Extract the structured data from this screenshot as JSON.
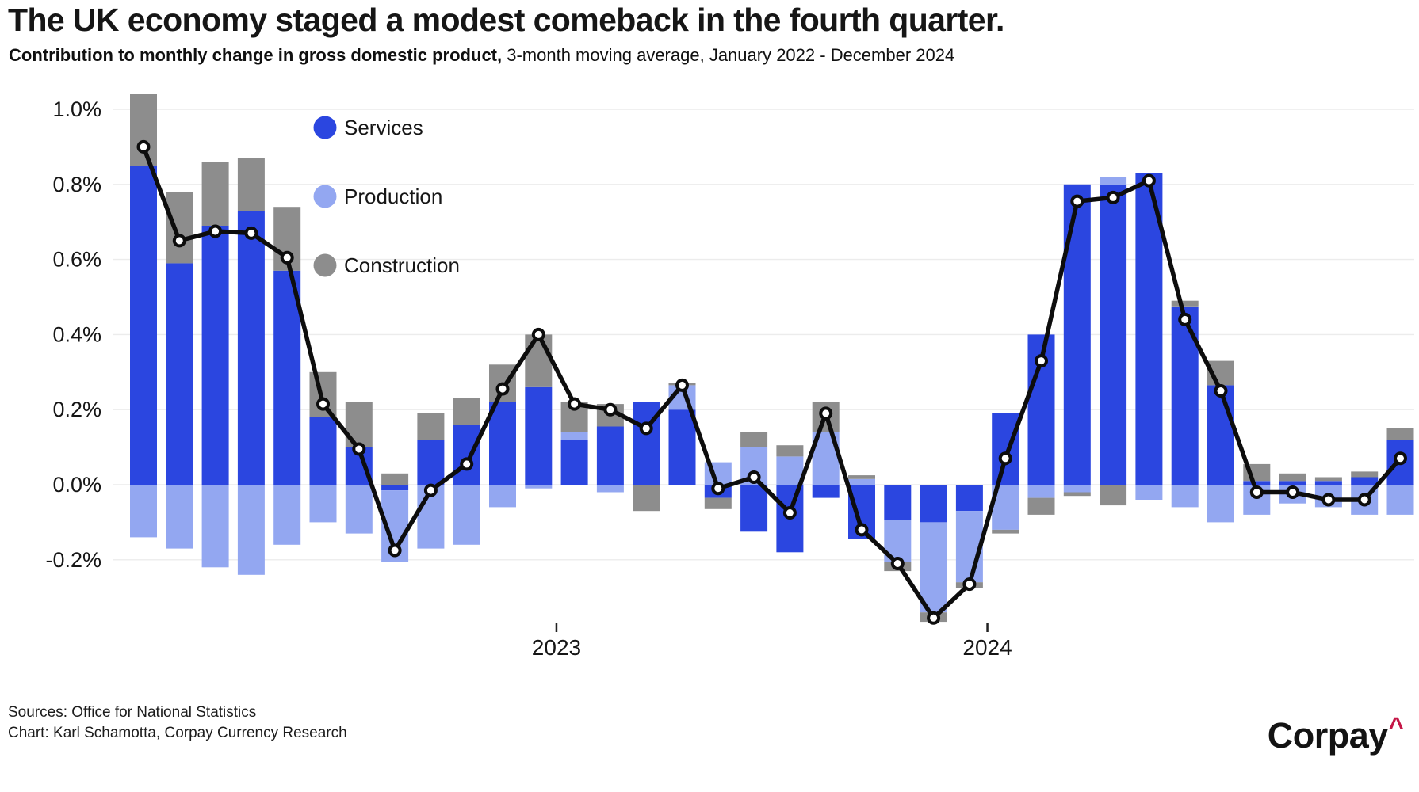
{
  "title": "The UK economy staged a modest comeback in the fourth quarter.",
  "subtitle": {
    "bold": "Contribution to monthly change in gross domestic product,",
    "rest": " 3-month moving average, January 2022 - December 2024"
  },
  "footer": {
    "sources": "Sources: Office for National Statistics",
    "credit": "Chart: Karl Schamotta, Corpay Currency Research",
    "logo_text": "Corpay",
    "logo_caret": "^"
  },
  "colors": {
    "services": "#2b46e0",
    "production": "#93a7f1",
    "construction": "#8d8d8d",
    "line": "#0d0d0d",
    "grid": "#ececec",
    "background": "#ffffff",
    "logo_caret": "#c51747"
  },
  "chart_data": {
    "type": "bar",
    "subtype": "stacked-bars-with-total-line",
    "unit": "%",
    "grid": "horizontal",
    "legend_position": "upper-left-inside",
    "months": [
      "Jan 2022",
      "Feb 2022",
      "Mar 2022",
      "Apr 2022",
      "May 2022",
      "Jun 2022",
      "Jul 2022",
      "Aug 2022",
      "Sep 2022",
      "Oct 2022",
      "Nov 2022",
      "Dec 2022",
      "Jan 2023",
      "Feb 2023",
      "Mar 2023",
      "Apr 2023",
      "May 2023",
      "Jun 2023",
      "Jul 2023",
      "Aug 2023",
      "Sep 2023",
      "Oct 2023",
      "Nov 2023",
      "Dec 2023",
      "Jan 2024",
      "Feb 2024",
      "Mar 2024",
      "Apr 2024",
      "May 2024",
      "Jun 2024",
      "Jul 2024",
      "Aug 2024",
      "Sep 2024",
      "Oct 2024",
      "Nov 2024",
      "Dec 2024"
    ],
    "series": [
      {
        "name": "Services",
        "color": "#2b46e0",
        "values": [
          0.85,
          0.59,
          0.69,
          0.73,
          0.57,
          0.18,
          0.1,
          -0.015,
          0.12,
          0.16,
          0.22,
          0.26,
          0.12,
          0.155,
          0.22,
          0.2,
          -0.035,
          -0.125,
          -0.18,
          -0.035,
          -0.145,
          -0.095,
          -0.1,
          -0.07,
          0.19,
          0.4,
          0.8,
          0.8,
          0.83,
          0.475,
          0.265,
          0.01,
          0.01,
          0.01,
          0.02,
          0.12
        ]
      },
      {
        "name": "Production",
        "color": "#93a7f1",
        "values": [
          -0.14,
          -0.17,
          -0.22,
          -0.24,
          -0.16,
          -0.1,
          -0.13,
          -0.19,
          -0.17,
          -0.16,
          -0.06,
          -0.01,
          0.02,
          -0.02,
          0.0,
          0.065,
          0.06,
          0.1,
          0.075,
          0.14,
          0.015,
          -0.11,
          -0.24,
          -0.19,
          -0.12,
          -0.035,
          -0.02,
          0.02,
          -0.04,
          -0.06,
          -0.1,
          -0.08,
          -0.05,
          -0.06,
          -0.08,
          -0.08
        ]
      },
      {
        "name": "Construction",
        "color": "#8d8d8d",
        "values": [
          0.19,
          0.19,
          0.17,
          0.14,
          0.17,
          0.12,
          0.12,
          0.03,
          0.07,
          0.07,
          0.1,
          0.14,
          0.08,
          0.06,
          -0.07,
          0.005,
          -0.03,
          0.04,
          0.03,
          0.08,
          0.01,
          -0.025,
          -0.025,
          -0.015,
          -0.01,
          -0.045,
          -0.01,
          -0.055,
          0.0,
          0.015,
          0.065,
          0.045,
          0.02,
          0.01,
          0.015,
          0.03
        ]
      }
    ],
    "line": {
      "color": "#0d0d0d",
      "values": [
        0.9,
        0.65,
        0.675,
        0.67,
        0.605,
        0.215,
        0.095,
        -0.175,
        -0.015,
        0.055,
        0.255,
        0.4,
        0.215,
        0.2,
        0.15,
        0.265,
        -0.01,
        0.02,
        -0.075,
        0.19,
        -0.12,
        -0.21,
        -0.355,
        -0.265,
        0.07,
        0.33,
        0.755,
        0.765,
        0.81,
        0.44,
        0.25,
        -0.02,
        -0.02,
        -0.04,
        -0.04,
        0.07
      ]
    },
    "ylim": [
      -0.42,
      1.09
    ],
    "yticks": [
      {
        "value": 1.0,
        "label": "1.0%"
      },
      {
        "value": 0.8,
        "label": "0.8%"
      },
      {
        "value": 0.6,
        "label": "0.6%"
      },
      {
        "value": 0.4,
        "label": "0.4%"
      },
      {
        "value": 0.2,
        "label": "0.2%"
      },
      {
        "value": 0.0,
        "label": "0.0%"
      },
      {
        "value": -0.2,
        "label": "-0.2%"
      }
    ],
    "xticks": [
      {
        "label": "2023",
        "month_index": 12
      },
      {
        "label": "2024",
        "month_index": 24
      }
    ]
  }
}
